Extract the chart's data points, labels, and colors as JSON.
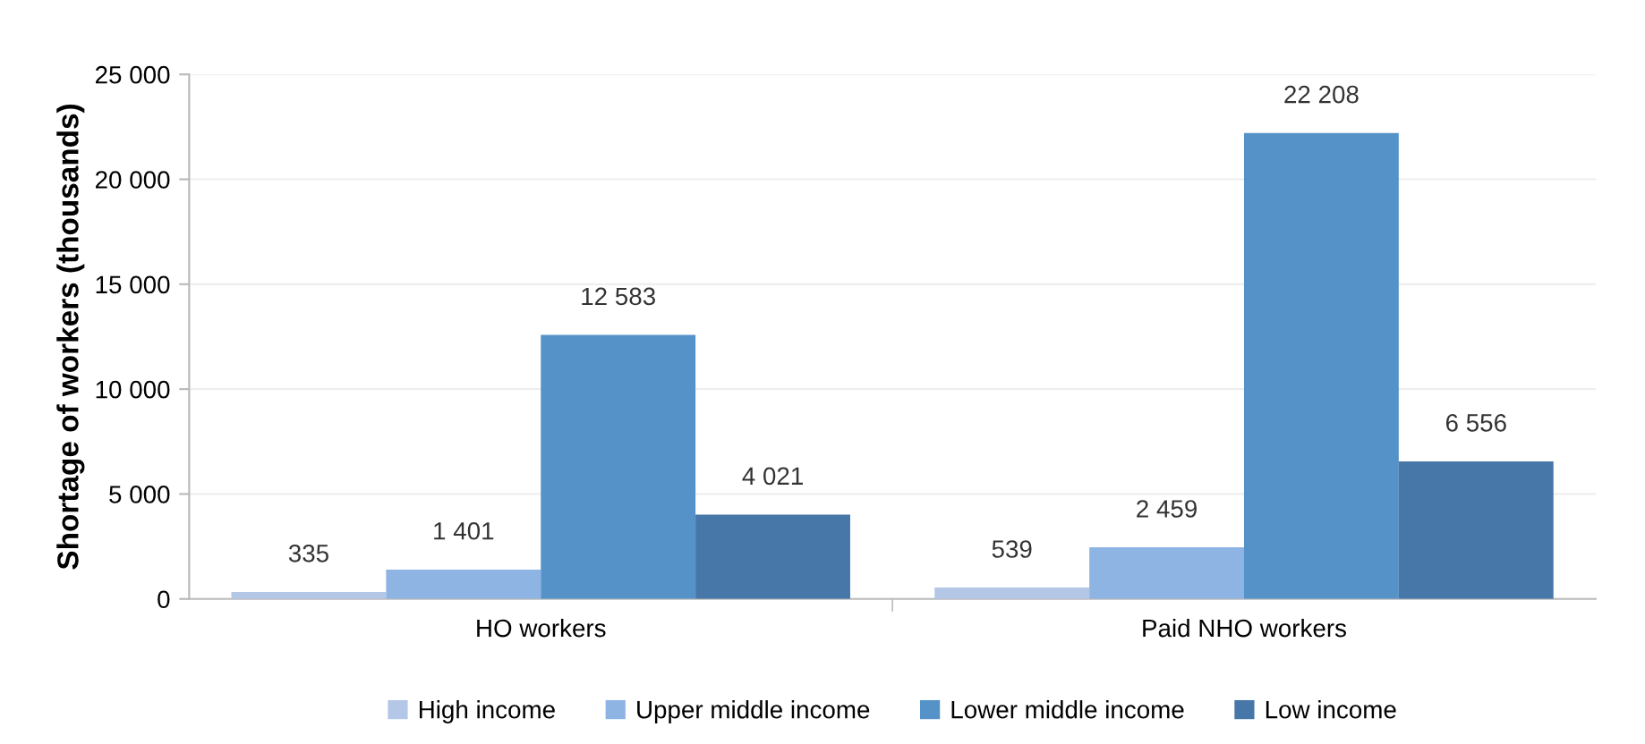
{
  "chart_data": {
    "type": "bar",
    "ylabel": "Shortage of workers (thousands)",
    "categories": [
      "HO workers",
      "Paid NHO workers"
    ],
    "series": [
      {
        "name": "High income",
        "color": "#b4c7e7",
        "values": [
          335,
          539
        ],
        "value_labels": [
          "335",
          "539"
        ]
      },
      {
        "name": "Upper middle income",
        "color": "#8eb4e3",
        "values": [
          1401,
          2459
        ],
        "value_labels": [
          "1 401",
          "2 459"
        ]
      },
      {
        "name": "Lower middle income",
        "color": "#5592c8",
        "values": [
          12583,
          22208
        ],
        "value_labels": [
          "12 583",
          "22 208"
        ]
      },
      {
        "name": "Low income",
        "color": "#4677a8",
        "values": [
          4021,
          6556
        ],
        "value_labels": [
          "4 021",
          "6 556"
        ]
      }
    ],
    "ylim": [
      0,
      25000
    ],
    "yticks": [
      {
        "value": 0,
        "label": "0"
      },
      {
        "value": 5000,
        "label": "5 000"
      },
      {
        "value": 10000,
        "label": "10 000"
      },
      {
        "value": 15000,
        "label": "15 000"
      },
      {
        "value": 20000,
        "label": "20 000"
      },
      {
        "value": 25000,
        "label": "25 000"
      }
    ],
    "grid": "y",
    "legend": "bottom"
  }
}
